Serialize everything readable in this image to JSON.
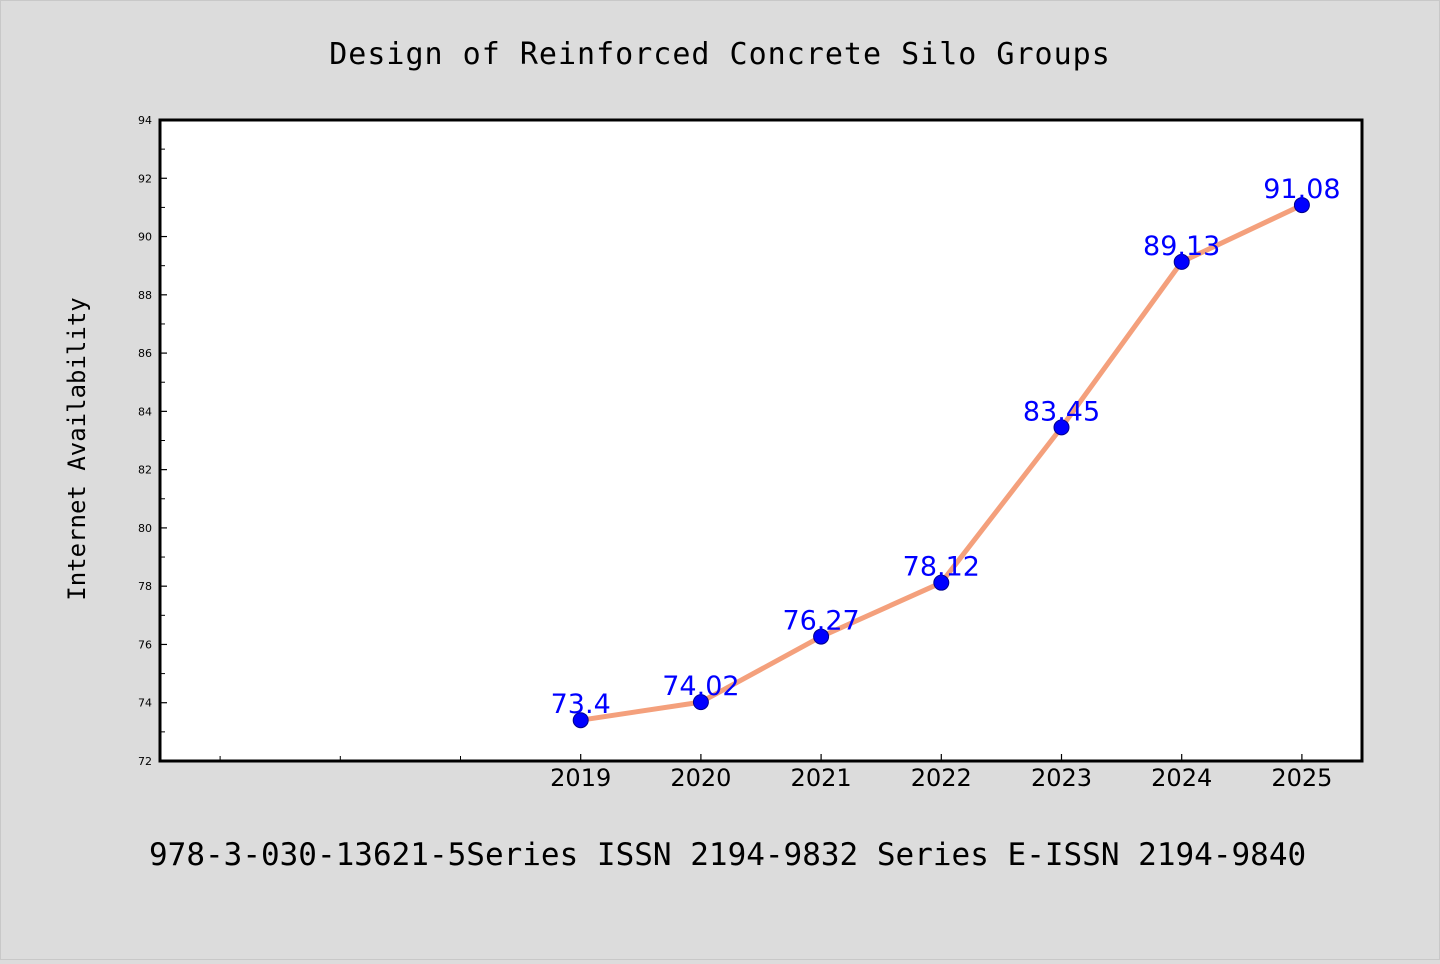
{
  "chart_data": {
    "type": "line",
    "title": "Design of Reinforced Concrete Silo Groups",
    "xlabel": "",
    "ylabel": "Internet Availability",
    "footer": "978-3-030-13621-5Series ISSN 2194-9832 Series E-ISSN 2194-9840",
    "x_range": [
      2015.5,
      2025.5
    ],
    "categories": [
      "2019",
      "2020",
      "2021",
      "2022",
      "2023",
      "2024",
      "2025"
    ],
    "x": [
      2019,
      2020,
      2021,
      2022,
      2023,
      2024,
      2025
    ],
    "values": [
      73.4,
      74.02,
      76.27,
      78.12,
      83.45,
      89.13,
      91.08
    ],
    "data_labels": [
      "73.4",
      "74.02",
      "76.27",
      "78.12",
      "83.45",
      "89.13",
      "91.08"
    ],
    "ylim": [
      72,
      94
    ],
    "yticks": [
      72,
      74,
      76,
      78,
      80,
      82,
      84,
      86,
      88,
      90,
      92,
      94
    ],
    "ytick_labels": [
      "72",
      "74",
      "76",
      "78",
      "80",
      "82",
      "84",
      "86",
      "88",
      "90",
      "92",
      "94"
    ],
    "grid": false,
    "legend": "none",
    "colors": {
      "line": "#f4a07c",
      "marker": "#0000ff",
      "label": "#0000ff",
      "background": "#dcdcdc",
      "plot_background": "#ffffff"
    }
  }
}
